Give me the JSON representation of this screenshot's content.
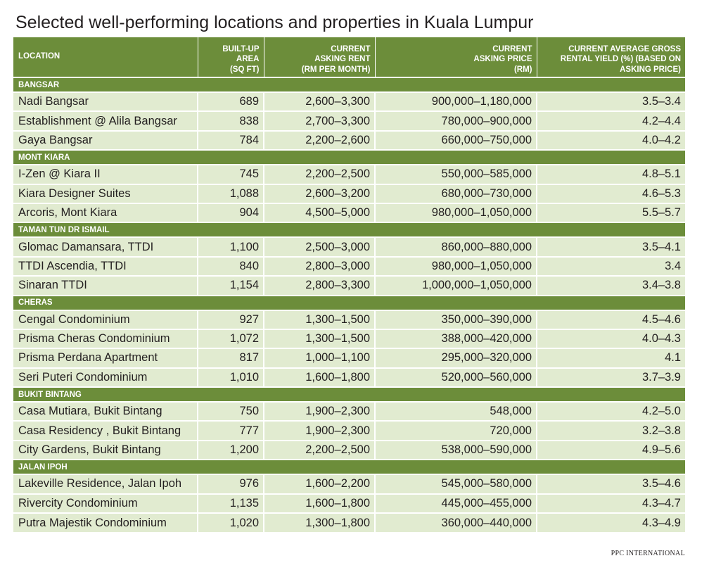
{
  "chart_data": {
    "type": "table",
    "title": "Selected well-performing locations and properties in Kuala Lumpur",
    "columns": [
      "LOCATION",
      "BUILT-UP AREA (SQ FT)",
      "CURRENT ASKING RENT (RM PER MONTH)",
      "CURRENT ASKING PRICE (RM)",
      "CURRENT AVERAGE GROSS RENTAL YIELD (%) (BASED ON ASKING PRICE)"
    ],
    "header_lines": [
      [
        "LOCATION"
      ],
      [
        "BUILT-UP",
        "AREA",
        "(SQ FT)"
      ],
      [
        "CURRENT",
        "ASKING RENT",
        "(RM PER MONTH)"
      ],
      [
        "CURRENT",
        "ASKING PRICE",
        "(RM)"
      ],
      [
        "CURRENT AVERAGE GROSS",
        "RENTAL YIELD (%) (BASED ON",
        "ASKING PRICE)"
      ]
    ],
    "groups": [
      {
        "name": "BANGSAR",
        "rows": [
          [
            "Nadi Bangsar",
            "689",
            "2,600–3,300",
            "900,000–1,180,000",
            "3.5–3.4"
          ],
          [
            "Establishment @ Alila Bangsar",
            "838",
            "2,700–3,300",
            "780,000–900,000",
            "4.2–4.4"
          ],
          [
            "Gaya Bangsar",
            "784",
            "2,200–2,600",
            "660,000–750,000",
            "4.0–4.2"
          ]
        ]
      },
      {
        "name": "MONT KIARA",
        "rows": [
          [
            "I-Zen @ Kiara II",
            "745",
            "2,200–2,500",
            "550,000–585,000",
            "4.8–5.1"
          ],
          [
            "Kiara Designer Suites",
            "1,088",
            "2,600–3,200",
            "680,000–730,000",
            "4.6–5.3"
          ],
          [
            "Arcoris, Mont Kiara",
            "904",
            "4,500–5,000",
            "980,000–1,050,000",
            "5.5–5.7"
          ]
        ]
      },
      {
        "name": "TAMAN TUN DR ISMAIL",
        "rows": [
          [
            "Glomac Damansara, TTDI",
            "1,100",
            "2,500–3,000",
            "860,000–880,000",
            "3.5–4.1"
          ],
          [
            "TTDI Ascendia, TTDI",
            "840",
            "2,800–3,000",
            "980,000–1,050,000",
            "3.4"
          ],
          [
            "Sinaran TTDI",
            "1,154",
            "2,800–3,300",
            "1,000,000–1,050,000",
            "3.4–3.8"
          ]
        ]
      },
      {
        "name": "CHERAS",
        "rows": [
          [
            "Cengal Condominium",
            "927",
            "1,300–1,500",
            "350,000–390,000",
            "4.5–4.6"
          ],
          [
            "Prisma Cheras Condominium",
            "1,072",
            "1,300–1,500",
            "388,000–420,000",
            "4.0–4.3"
          ],
          [
            "Prisma Perdana Apartment",
            "817",
            "1,000–1,100",
            "295,000–320,000",
            "4.1"
          ],
          [
            "Seri Puteri Condominium",
            "1,010",
            "1,600–1,800",
            "520,000–560,000",
            "3.7–3.9"
          ]
        ]
      },
      {
        "name": "BUKIT BINTANG",
        "rows": [
          [
            "Casa Mutiara, Bukit Bintang",
            "750",
            "1,900–2,300",
            "548,000",
            "4.2–5.0"
          ],
          [
            "Casa Residency , Bukit Bintang",
            "777",
            "1,900–2,300",
            "720,000",
            "3.2–3.8"
          ],
          [
            "City Gardens, Bukit Bintang",
            "1,200",
            "2,200–2,500",
            "538,000–590,000",
            "4.9–5.6"
          ]
        ]
      },
      {
        "name": "JALAN IPOH",
        "rows": [
          [
            "Lakeville Residence, Jalan Ipoh",
            "976",
            "1,600–2,200",
            "545,000–580,000",
            "3.5–4.6"
          ],
          [
            "Rivercity Condominium",
            "1,135",
            "1,600–1,800",
            "445,000–455,000",
            "4.3–4.7"
          ],
          [
            "Putra Majestik Condominium",
            "1,020",
            "1,300–1,800",
            "360,000–440,000",
            "4.3–4.9"
          ]
        ]
      }
    ],
    "source": "PPC INTERNATIONAL",
    "colors": {
      "header": "#6c8d3a",
      "row": "#e1ebd0",
      "text": "#231f20"
    }
  }
}
